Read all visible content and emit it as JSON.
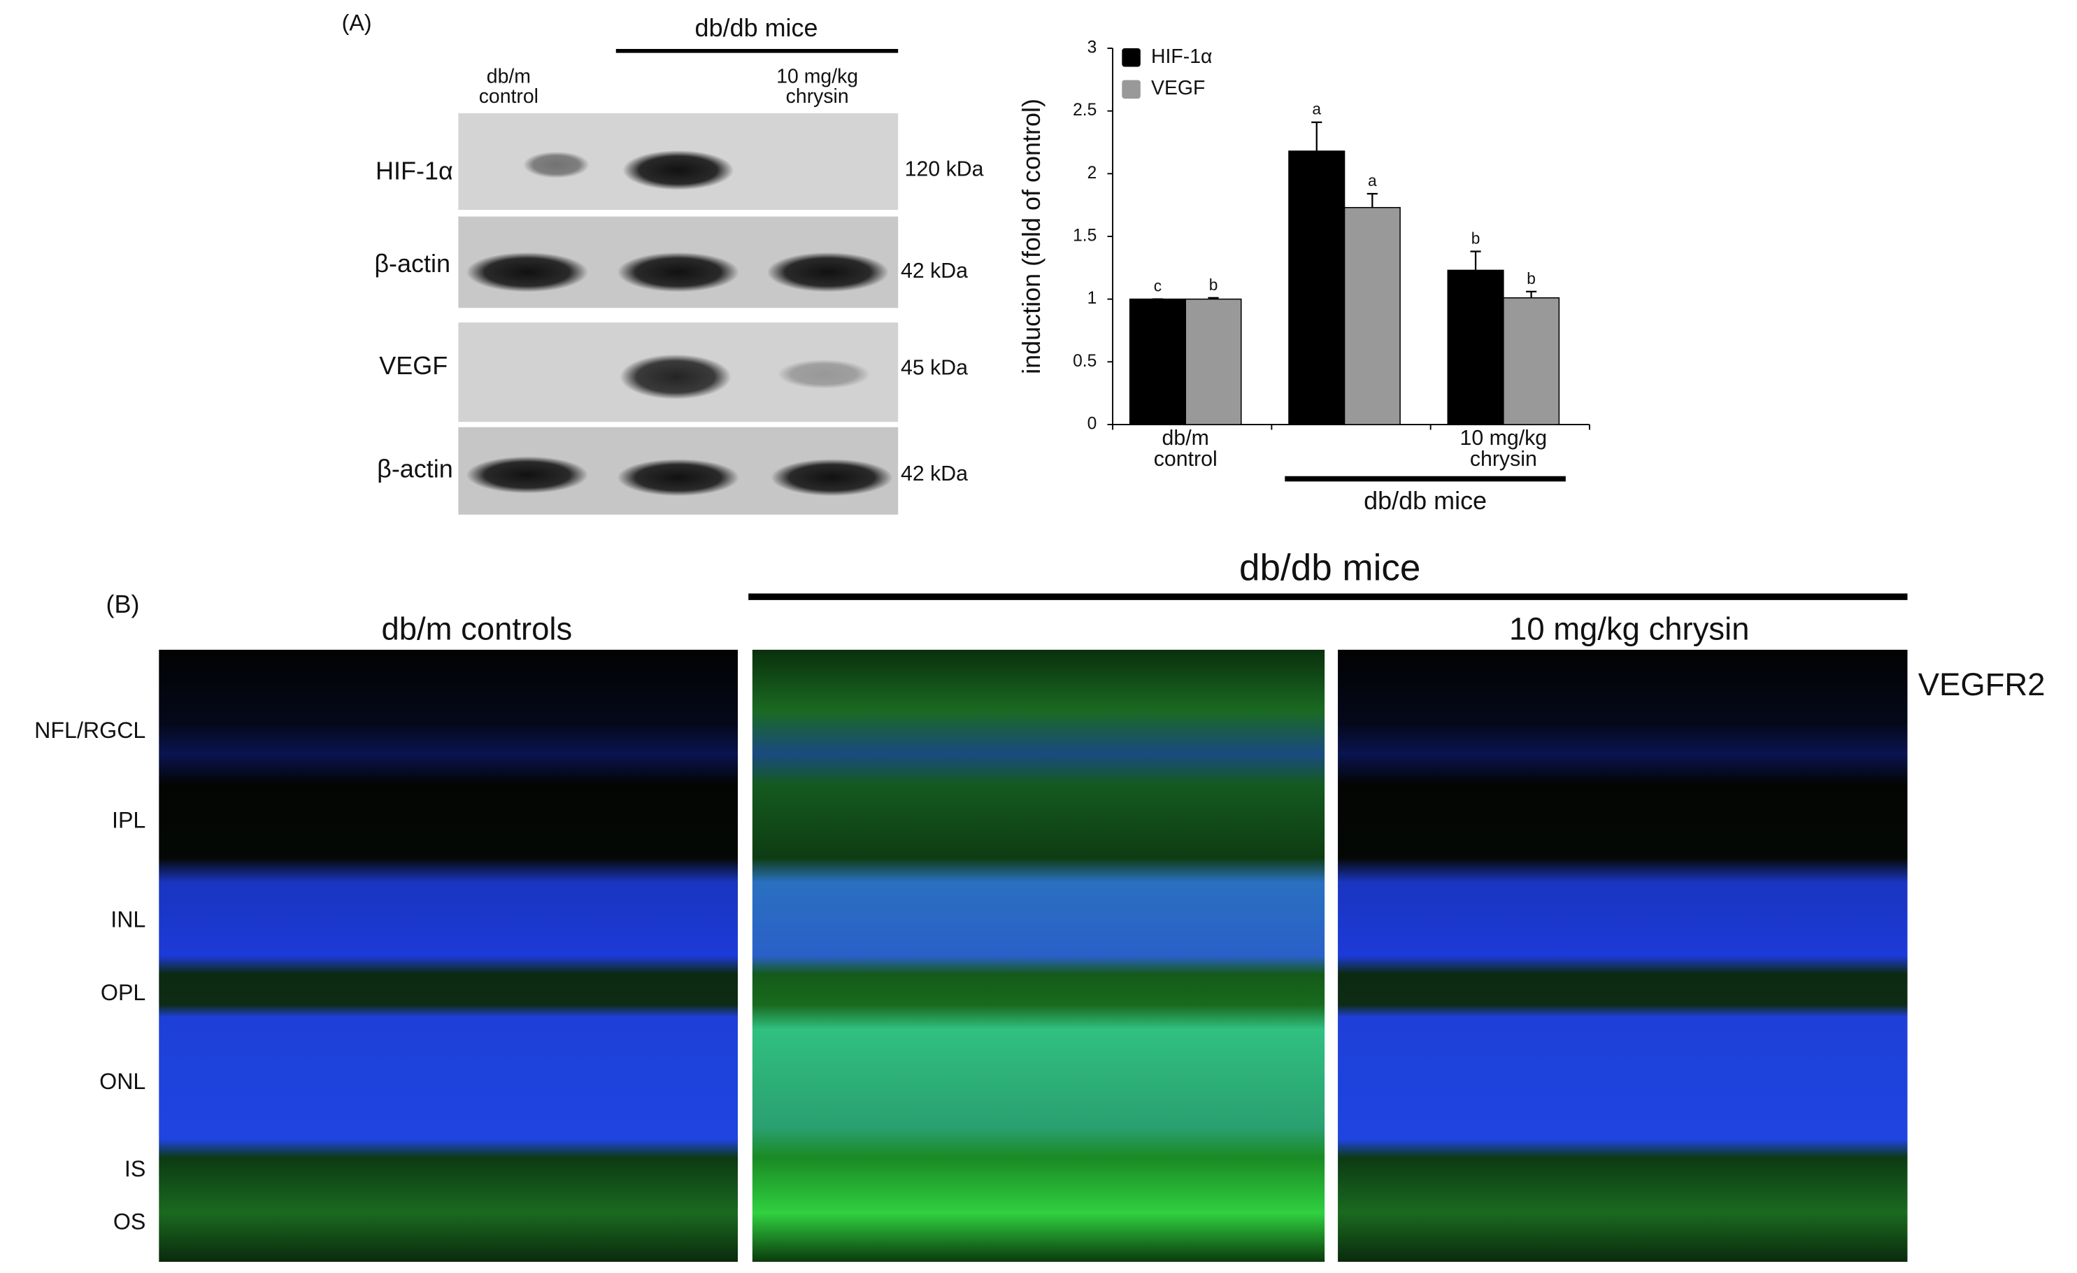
{
  "panel_a": {
    "label": "(A)",
    "group_label": "db/db mice",
    "lanes": [
      "db/m\ncontrol",
      "10 mg/kg\nchrysin"
    ],
    "rows": [
      "HIF-1α",
      "β-actin",
      "VEGF",
      "β-actin"
    ],
    "sizes": [
      "120 kDa",
      "42 kDa",
      "45 kDa",
      "42 kDa"
    ]
  },
  "chart_data": {
    "type": "bar",
    "y_label": "induction (fold of control)",
    "categories": [
      "db/m\ncontrol",
      null,
      "10 mg/kg\nchrysin"
    ],
    "group_label": "db/db mice",
    "series": [
      {
        "name": "HIF-1α",
        "color": "#000000",
        "values": [
          1,
          2.18,
          1.23
        ],
        "errors": [
          0,
          0.23,
          0.15
        ],
        "significance": [
          "c",
          "a",
          "b"
        ]
      },
      {
        "name": "VEGF",
        "color": "#999999",
        "values": [
          1,
          1.73,
          1.01
        ],
        "errors": [
          0.01,
          0.11,
          0.05
        ],
        "significance": [
          "b",
          "a",
          "b"
        ]
      }
    ],
    "ylim": [
      0,
      3
    ],
    "yticks": [
      0,
      0.5,
      1,
      1.5,
      2,
      2.5,
      3
    ],
    "legend": "upper left"
  },
  "panel_b": {
    "label": "(B)",
    "group_label": "db/db mice",
    "columns": [
      "db/m controls",
      "10 mg/kg chrysin"
    ],
    "stain": "VEGFR2",
    "layers": [
      "NFL/RGCL",
      "IPL",
      "INL",
      "OPL",
      "ONL",
      "IS",
      "OS"
    ]
  }
}
